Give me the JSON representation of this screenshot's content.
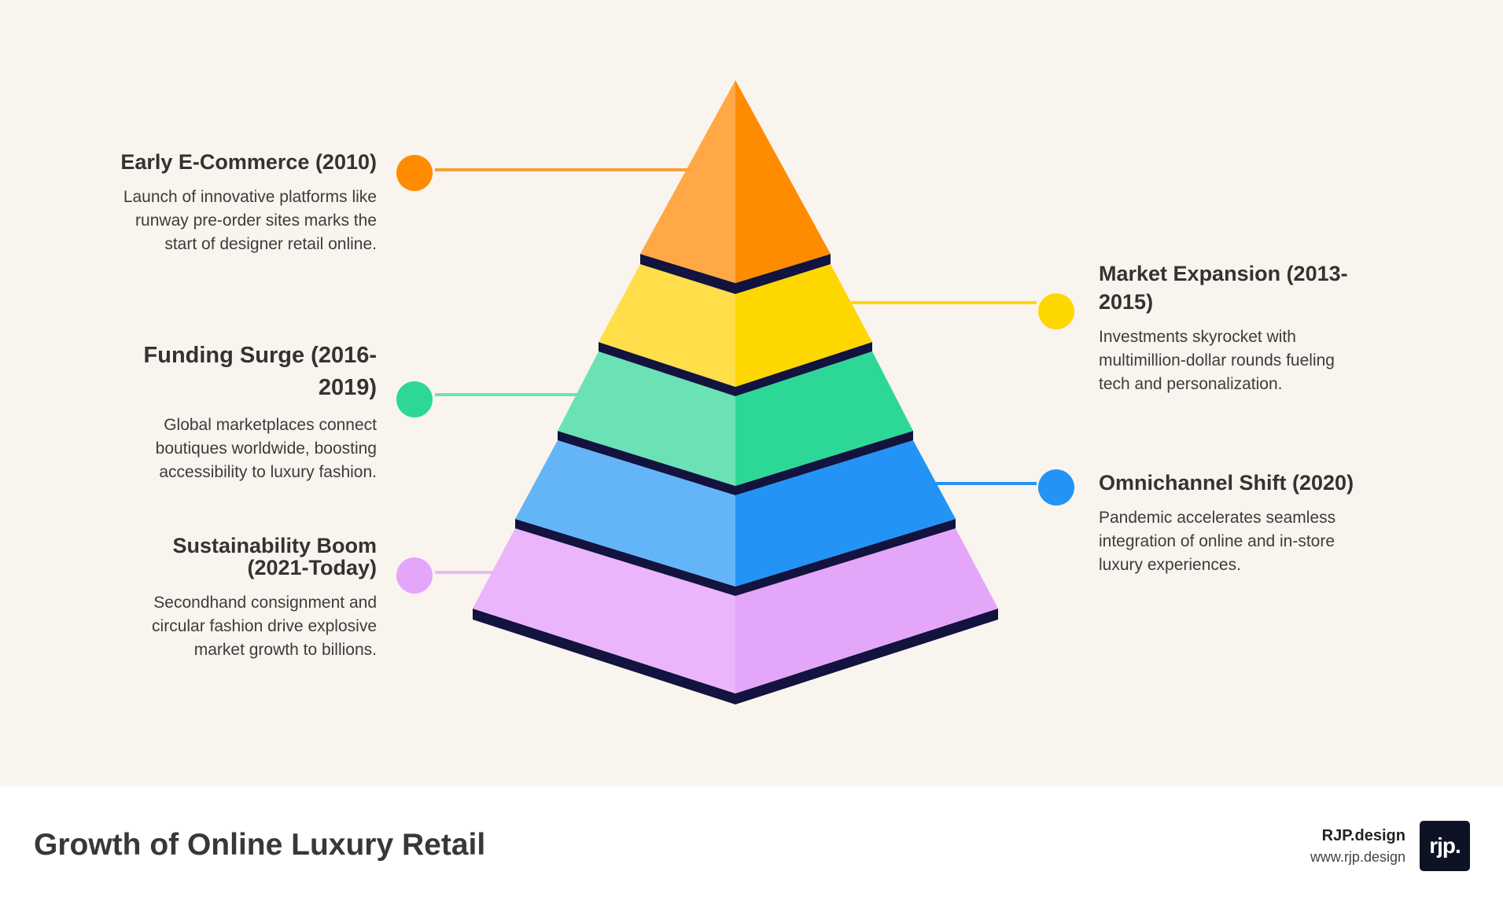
{
  "diagram": {
    "levels": [
      {
        "title": "Early E-Commerce (2010)",
        "description": "Launch of innovative platforms like runway pre-order sites marks the start of designer retail online.",
        "color": "#ff8c00"
      },
      {
        "title": "Market Expansion (2013-2015)",
        "description": "Investments skyrocket with multimillion-dollar rounds fueling tech and personalization.",
        "color": "#ffd700"
      },
      {
        "title": "Funding Surge (2016-2019)",
        "description": "Global marketplaces connect boutiques worldwide, boosting accessibility to luxury fashion.",
        "color": "#2dd897"
      },
      {
        "title": "Omnichannel Shift (2020)",
        "description": "Pandemic accelerates seamless integration of online and in-store luxury experiences.",
        "color": "#2196f3"
      },
      {
        "title": "Sustainability Boom (2021-Today)",
        "description": "Secondhand consignment and circular fashion drive explosive market growth to billions.",
        "color": "#e4a6f9"
      }
    ]
  },
  "footer": {
    "title": "Growth of Online Luxury Retail",
    "brand_name": "RJP.design",
    "brand_url": "www.rjp.design",
    "logo_text": "rjp."
  }
}
